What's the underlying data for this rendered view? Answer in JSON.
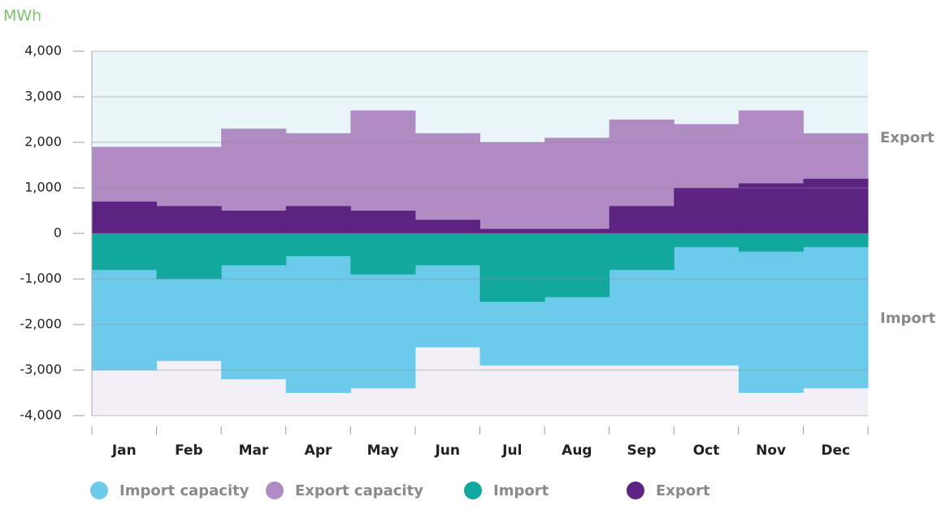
{
  "chart_data": {
    "type": "area",
    "y_axis_label": "MWh",
    "annotations": [
      "Export",
      "Import"
    ],
    "categories": [
      "Jan",
      "Feb",
      "Mar",
      "Apr",
      "May",
      "Jun",
      "Jul",
      "Aug",
      "Sep",
      "Oct",
      "Nov",
      "Dec"
    ],
    "series": [
      {
        "name": "Import capacity",
        "color": "#6ccbea",
        "values": [
          -3000,
          -2800,
          -3200,
          -3500,
          -3400,
          -2500,
          -2900,
          -2900,
          -2900,
          -2900,
          -3500,
          -3400
        ]
      },
      {
        "name": "Export capacity",
        "color": "#b08bc4",
        "values": [
          1900,
          1900,
          2300,
          2200,
          2700,
          2200,
          2000,
          2100,
          2500,
          2400,
          2700,
          2200
        ]
      },
      {
        "name": "Import",
        "color": "#13a89e",
        "values": [
          -800,
          -1000,
          -700,
          -500,
          -900,
          -700,
          -1500,
          -1400,
          -800,
          -300,
          -400,
          -300
        ]
      },
      {
        "name": "Export",
        "color": "#5c2383",
        "values": [
          700,
          600,
          500,
          600,
          500,
          300,
          100,
          100,
          600,
          1000,
          1100,
          1200
        ]
      }
    ],
    "ylim": [
      -4000,
      4000
    ],
    "yticks": [
      {
        "value": 4000,
        "label": "4,000"
      },
      {
        "value": 3000,
        "label": "3,000"
      },
      {
        "value": 2000,
        "label": "2,000"
      },
      {
        "value": 1000,
        "label": "1,000"
      },
      0,
      {
        "value": -1000,
        "label": "-1,000"
      },
      {
        "value": -2000,
        "label": "-2,000"
      },
      {
        "value": -3000,
        "label": "-3,000"
      },
      {
        "value": -4000,
        "label": "-4,000"
      }
    ],
    "grid": true,
    "legend": "bottom"
  }
}
